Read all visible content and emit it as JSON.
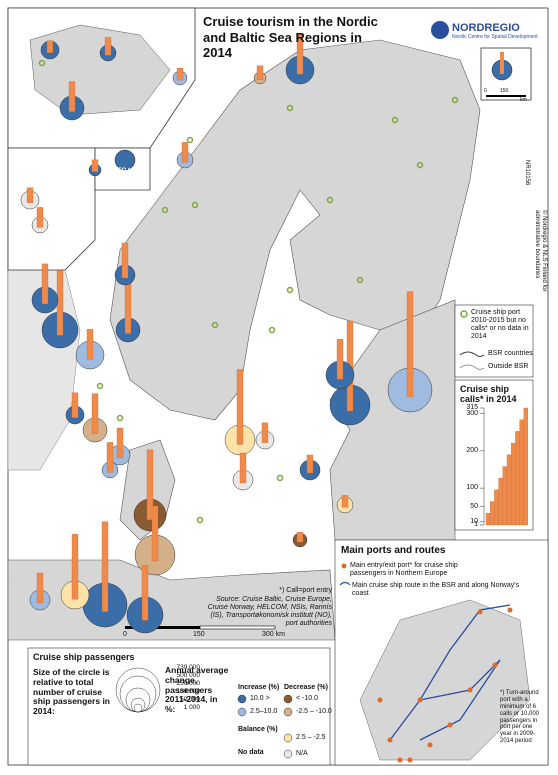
{
  "header": {
    "title": "Cruise tourism in the Nordic and Baltic Sea Regions in 2014",
    "logo": "NORDREGIO",
    "logo_subtitle": "Nordic Centre for Spatial Development",
    "code": "NR10156",
    "copyright": "© Nordregio & NLS Finland for administrative boundaries"
  },
  "inset": {
    "fo_label": "FO total",
    "scale": [
      "0",
      "150",
      "km"
    ]
  },
  "scale": {
    "labels": [
      "0",
      "150",
      "300 km"
    ]
  },
  "legend": {
    "port_no_calls": "Cruise ship port 2010-2015 but no calls* or no data in 2014",
    "bsr": "BSR countries",
    "outside": "Outside BSR"
  },
  "calls": {
    "title": "Cruise ship calls* in 2014",
    "ticks": [
      1,
      10,
      50,
      100,
      200,
      300,
      315
    ]
  },
  "notes": {
    "call": "*) Call=port entry",
    "source": "Source: Cruise Baltic, Cruise Europe, Cruise Norway, HELCOM, NSIs, Rannís (IS), Transportøkonomisk institutt (NO), port authorities"
  },
  "passengers": {
    "title": "Cruise ship passengers",
    "size_text": "Size of the circle is relative to total number of cruise ship passengers in 2014:",
    "sizes": [
      "739 000",
      "500 000",
      "250 000",
      "100 000",
      "50 000",
      "1 000"
    ],
    "change_text": "Annual average change, passengers 2011-2014, in %:",
    "increase": "Increase (%)",
    "decrease": "Decrease (%)",
    "balance": "Balance (%)",
    "no_data": "No data",
    "classes": [
      "10.0 >",
      "2.5–10.0",
      "< -10.0",
      "-2.5 – -10.0",
      "2.5 – -2.5",
      "N/A"
    ]
  },
  "routes": {
    "title": "Main ports and routes",
    "port": "Main entry/exit port* for cruise ship passengers in Northern Europe",
    "route": "Main cruise ship route in the BSR and along Norway's coast",
    "footnote": "*) Turn-around port with a minimum of 6 calls or 10,000 passengers in port per one year in 2009-2014 period"
  }
}
